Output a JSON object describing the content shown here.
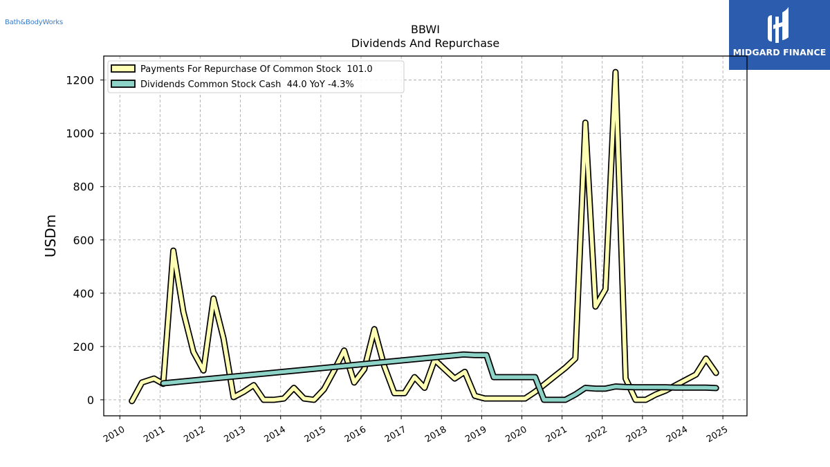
{
  "header": {
    "company_logo_text": "Bath&BodyWorks",
    "brand_name": "MIDGARD FINANCE"
  },
  "colors": {
    "repurchase": "#ffffb3",
    "dividends": "#8dd3c7",
    "brand_background": "#2b5cad"
  },
  "chart_data": {
    "type": "line",
    "title": "BBWI",
    "subtitle": "Dividends And Repurchase",
    "ylabel": "USDm",
    "xlabel": "",
    "xlim": [
      2009.6,
      2025.6
    ],
    "ylim": [
      -60,
      1290
    ],
    "grid": true,
    "legend_position": "top-left",
    "x_ticks": [
      "2010",
      "2011",
      "2012",
      "2013",
      "2014",
      "2015",
      "2016",
      "2017",
      "2018",
      "2019",
      "2020",
      "2021",
      "2022",
      "2023",
      "2024",
      "2025"
    ],
    "y_ticks": [
      "0",
      "200",
      "400",
      "600",
      "800",
      "1000",
      "1200"
    ],
    "series": [
      {
        "name": "Payments For Repurchase Of Common Stock",
        "legend_label": "Payments For Repurchase Of Common Stock  101.0",
        "color": "#ffffb3",
        "x": [
          2010.3,
          2010.55,
          2010.85,
          2011.08,
          2011.33,
          2011.58,
          2011.83,
          2012.08,
          2012.33,
          2012.58,
          2012.83,
          2013.08,
          2013.33,
          2013.58,
          2013.83,
          2014.08,
          2014.33,
          2014.58,
          2014.83,
          2015.08,
          2015.33,
          2015.58,
          2015.83,
          2016.08,
          2016.33,
          2016.58,
          2016.83,
          2017.08,
          2017.33,
          2017.58,
          2017.83,
          2018.08,
          2018.33,
          2018.58,
          2018.83,
          2019.08,
          2019.33,
          2019.58,
          2019.83,
          2020.08,
          2020.33,
          2020.58,
          2020.83,
          2021.08,
          2021.33,
          2021.58,
          2021.83,
          2022.08,
          2022.33,
          2022.58,
          2022.83,
          2023.08,
          2023.33,
          2023.58,
          2023.83,
          2024.08,
          2024.33,
          2024.58,
          2024.83
        ],
        "values": [
          -5,
          65,
          80,
          60,
          560,
          330,
          180,
          110,
          380,
          230,
          10,
          30,
          55,
          0,
          0,
          5,
          45,
          5,
          0,
          40,
          110,
          185,
          65,
          115,
          265,
          125,
          25,
          25,
          85,
          45,
          150,
          115,
          80,
          105,
          15,
          5,
          5,
          5,
          5,
          5,
          30,
          60,
          90,
          120,
          155,
          1040,
          350,
          415,
          1230,
          80,
          0,
          0,
          20,
          35,
          55,
          75,
          95,
          155,
          101
        ]
      },
      {
        "name": "Dividends Common Stock Cash",
        "legend_label": "Dividends Common Stock Cash  44.0 YoY -4.3%",
        "color": "#8dd3c7",
        "x": [
          2011.08,
          2018.55,
          2018.83,
          2019.12,
          2019.3,
          2019.58,
          2019.83,
          2020.08,
          2020.33,
          2020.55,
          2020.83,
          2021.08,
          2021.33,
          2021.58,
          2021.83,
          2022.08,
          2022.33,
          2022.58,
          2022.83,
          2023.08,
          2023.33,
          2023.58,
          2023.83,
          2024.08,
          2024.33,
          2024.58,
          2024.83
        ],
        "values": [
          62,
          170,
          168,
          168,
          85,
          85,
          85,
          85,
          85,
          0,
          0,
          0,
          20,
          45,
          42,
          42,
          50,
          48,
          47,
          47,
          47,
          47,
          46,
          46,
          46,
          46,
          44
        ]
      }
    ]
  }
}
